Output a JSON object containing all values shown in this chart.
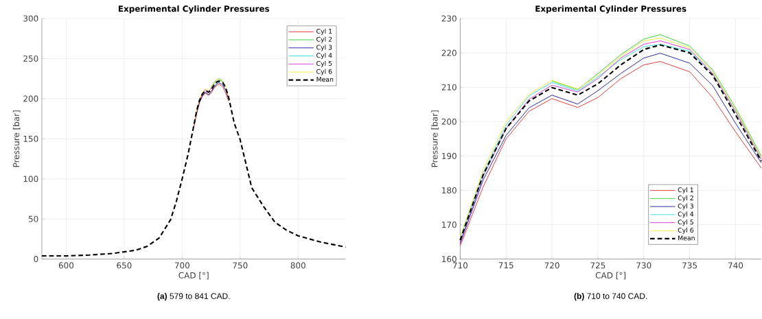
{
  "chart_data": [
    {
      "type": "line",
      "title": "Experimental Cylinder Pressures",
      "xlabel": "CAD [°]",
      "ylabel": "Pressure [bar]",
      "x": [
        579,
        600,
        620,
        640,
        650,
        660,
        670,
        680,
        690,
        695,
        700,
        705,
        710,
        712.5,
        715,
        717.5,
        720,
        722.8,
        725,
        727.5,
        730,
        731.8,
        735,
        737.5,
        740,
        745,
        750,
        760,
        770,
        780,
        790,
        800,
        820,
        841
      ],
      "series": [
        {
          "name": "Cyl 1",
          "color": "#e03030",
          "values": [
            null,
            null,
            null,
            null,
            null,
            null,
            null,
            null,
            null,
            null,
            null,
            null,
            164,
            181,
            195,
            203,
            207,
            204,
            207,
            213,
            217,
            218,
            215,
            207,
            197,
            null,
            null,
            null,
            null,
            null,
            null,
            null,
            null,
            null
          ]
        },
        {
          "name": "Cyl 2",
          "color": "#33cc33",
          "values": [
            null,
            null,
            null,
            null,
            null,
            null,
            null,
            null,
            null,
            null,
            null,
            null,
            null,
            null,
            null,
            null,
            null,
            null,
            214,
            220,
            224,
            225,
            222,
            215,
            null,
            null,
            null,
            null,
            null,
            null,
            null,
            null,
            null,
            null
          ]
        },
        {
          "name": "Cyl 3",
          "color": "#1a1aa0",
          "values": [
            null,
            null,
            null,
            null,
            null,
            null,
            null,
            null,
            null,
            null,
            null,
            null,
            165,
            183,
            196,
            204,
            208,
            205,
            209,
            214,
            219,
            220,
            217,
            211,
            200,
            null,
            null,
            null,
            null,
            null,
            null,
            null,
            null,
            null
          ]
        },
        {
          "name": "Cyl 4",
          "color": "#33dddd",
          "values": [
            null,
            null,
            null,
            null,
            null,
            null,
            null,
            null,
            null,
            null,
            null,
            null,
            null,
            null,
            null,
            null,
            null,
            null,
            null,
            218,
            222,
            223,
            221,
            null,
            null,
            null,
            null,
            null,
            null,
            null,
            null,
            null,
            null,
            null
          ]
        },
        {
          "name": "Cyl 5",
          "color": "#d633d6",
          "values": [
            null,
            null,
            null,
            null,
            null,
            null,
            null,
            null,
            null,
            null,
            null,
            null,
            165,
            184,
            198,
            207,
            211,
            209,
            213,
            219,
            null,
            null,
            null,
            null,
            null,
            null,
            null,
            null,
            null,
            null,
            null,
            null,
            null,
            null
          ]
        },
        {
          "name": "Cyl 6",
          "color": "#eeee33",
          "values": [
            null,
            null,
            null,
            null,
            null,
            null,
            null,
            null,
            null,
            null,
            null,
            null,
            167,
            186,
            200,
            208,
            212,
            210,
            214,
            219,
            224,
            224,
            222,
            215,
            204,
            null,
            null,
            null,
            null,
            null,
            null,
            null,
            null,
            null
          ]
        },
        {
          "name": "Mean",
          "color": "#000000",
          "line_style": "dashed",
          "values": [
            4,
            4,
            5,
            7,
            9,
            11,
            16,
            26,
            49,
            72,
            100,
            130,
            166,
            185,
            198,
            206,
            210,
            208,
            211,
            217,
            221,
            222,
            220,
            214,
            202,
            169,
            149,
            89,
            66,
            46,
            36,
            29,
            21,
            15
          ]
        }
      ],
      "xlim": [
        579,
        841
      ],
      "ylim": [
        0,
        300
      ],
      "xticks": [
        600,
        650,
        700,
        750,
        800
      ],
      "yticks": [
        0,
        50,
        100,
        150,
        200,
        250,
        300
      ],
      "grid": true,
      "legend": "top right",
      "annotations": [
        "**(a)** 579 to 841 CAD."
      ]
    },
    {
      "type": "line",
      "title": "Experimental Cylinder Pressures",
      "xlabel": "CAD [°]",
      "ylabel": "Pressure [bar]",
      "x": [
        710,
        712.5,
        715,
        717.5,
        720,
        722.8,
        725,
        727.5,
        730,
        731.8,
        735,
        737.5,
        740,
        742.8
      ],
      "series": [
        {
          "name": "Cyl 1",
          "color": "#e03030",
          "values": [
            163.8,
            181,
            195,
            203,
            206.7,
            204.1,
            207,
            212.5,
            216.5,
            217.5,
            214.5,
            207,
            197,
            186.5
          ]
        },
        {
          "name": "Cyl 2",
          "color": "#33cc33",
          "values": [
            null,
            null,
            null,
            null,
            211.8,
            209.3,
            214,
            219.5,
            224,
            225.3,
            222,
            215,
            204,
            190
          ]
        },
        {
          "name": "Cyl 3",
          "color": "#1a1aa0",
          "values": [
            164.5,
            183,
            196,
            204,
            207.7,
            205.1,
            209,
            214,
            218.5,
            219.9,
            217,
            210.5,
            199.5,
            188
          ]
        },
        {
          "name": "Cyl 4",
          "color": "#33dddd",
          "values": [
            166,
            185,
            199,
            207.5,
            211.4,
            208.9,
            213,
            218,
            221.8,
            222.5,
            220.5,
            214,
            203,
            189.5
          ]
        },
        {
          "name": "Cyl 5",
          "color": "#d633d6",
          "values": [
            165,
            184,
            198,
            206.5,
            210.6,
            208.6,
            212.5,
            218.5,
            222.5,
            223.5,
            221,
            214,
            203,
            189
          ]
        },
        {
          "name": "Cyl 6",
          "color": "#eeee33",
          "values": [
            166.5,
            186,
            200,
            208,
            212,
            209.5,
            213.5,
            219,
            223.5,
            224.3,
            221.5,
            214.5,
            203.5,
            189.5
          ]
        },
        {
          "name": "Mean",
          "color": "#000000",
          "line_style": "dashed",
          "values": [
            165.5,
            184.5,
            198,
            206,
            209.9,
            207.7,
            211,
            216.5,
            221,
            222.3,
            220,
            213.5,
            202,
            188.5
          ]
        }
      ],
      "xlim": [
        710,
        742.8
      ],
      "ylim": [
        160,
        230
      ],
      "xticks": [
        710,
        715,
        720,
        725,
        730,
        735,
        740
      ],
      "yticks": [
        160,
        170,
        180,
        190,
        200,
        210,
        220,
        230
      ],
      "grid": true,
      "legend": "bottom right",
      "annotations": [
        "**(b)** 710 to 740 CAD."
      ]
    }
  ]
}
